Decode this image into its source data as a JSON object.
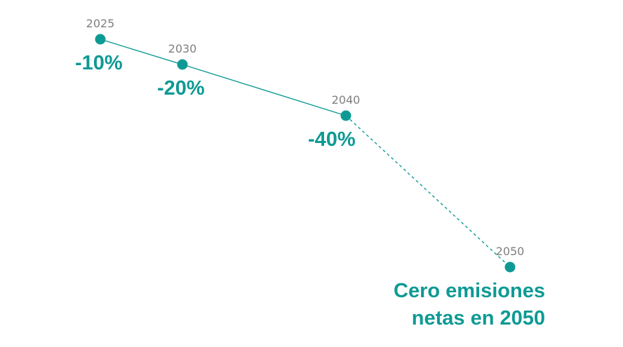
{
  "chart_data": {
    "type": "line",
    "x": [
      2025,
      2030,
      2040,
      2050
    ],
    "x_labels": [
      "2025",
      "2030",
      "2040",
      "2050"
    ],
    "values": [
      -10,
      -20,
      -40,
      -100
    ],
    "value_labels": [
      "-10%",
      "-20%",
      "-40%",
      ""
    ],
    "line_styles": [
      "solid",
      "solid",
      "dashed"
    ],
    "color": "#0e9a94",
    "note_lines": [
      "Cero emisiones",
      "netas en 2050"
    ],
    "grid": false
  }
}
